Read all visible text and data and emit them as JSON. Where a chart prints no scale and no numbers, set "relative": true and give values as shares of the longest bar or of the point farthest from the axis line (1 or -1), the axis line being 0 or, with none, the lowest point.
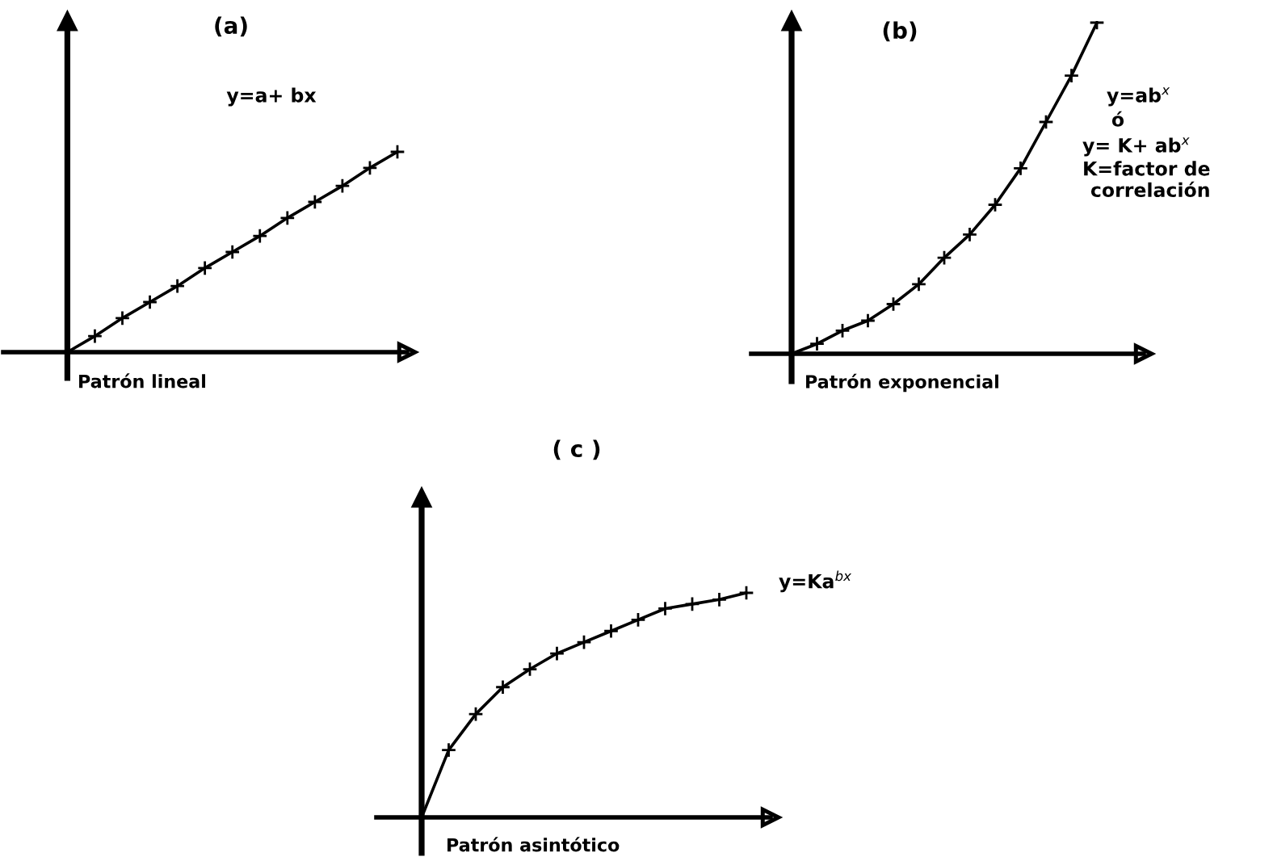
{
  "chart_data": [
    {
      "type": "line",
      "title": "(a)",
      "xlabel": "Patrón lineal",
      "annotations": [
        "y=a+ bx"
      ],
      "categories": [
        null,
        null,
        null,
        null,
        null,
        null,
        null,
        null,
        null,
        null,
        null,
        null,
        null
      ],
      "values": [
        0,
        0.08,
        0.17,
        0.25,
        0.33,
        0.42,
        0.5,
        0.58,
        0.67,
        0.75,
        0.83,
        0.92,
        1
      ],
      "color": "#000000",
      "relative": true,
      "marker": "cross"
    },
    {
      "type": "line",
      "title": "(b)",
      "xlabel": "Patrón exponencial",
      "annotations": [
        "y=ab$^{x}$",
        "ó",
        "y= K+ ab$^{x}$",
        "K=factor de\ncorrelación"
      ],
      "categories": [
        null,
        null,
        null,
        null,
        null,
        null,
        null,
        null,
        null,
        null,
        null,
        null,
        null
      ],
      "values": [
        0,
        0.03,
        0.07,
        0.1,
        0.15,
        0.21,
        0.29,
        0.36,
        0.45,
        0.56,
        0.7,
        0.84,
        1
      ],
      "color": "#000000",
      "relative": true,
      "marker": "cross"
    },
    {
      "type": "line",
      "title": "( c )",
      "xlabel": "Patrón asintótico",
      "annotations": [
        "y=Ka$^{bx}$"
      ],
      "categories": [
        null,
        null,
        null,
        null,
        null,
        null,
        null,
        null,
        null,
        null,
        null,
        null,
        null
      ],
      "values": [
        0,
        0.3,
        0.46,
        0.58,
        0.66,
        0.73,
        0.78,
        0.83,
        0.88,
        0.93,
        0.95,
        0.97,
        1
      ],
      "color": "#000000",
      "relative": true,
      "marker": "cross"
    }
  ]
}
